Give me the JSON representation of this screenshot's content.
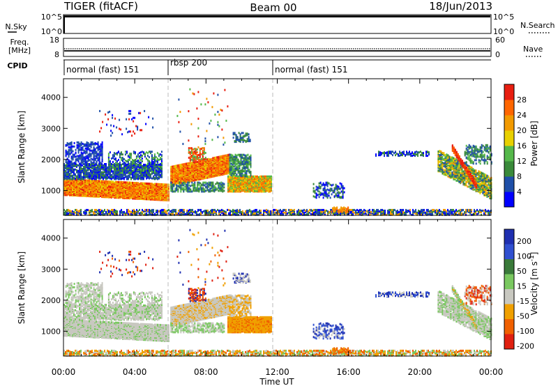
{
  "header": {
    "radar": "TIGER (fitACF)",
    "beam": "Beam 00",
    "date": "18/Jun/2013"
  },
  "nsky_panel": {
    "label": "N.Sky",
    "ticks_left": [
      "10^5",
      "10^0"
    ],
    "ticks_right": [
      "10^5",
      "10^0"
    ],
    "right_label": "N.Search"
  },
  "freq_panel": {
    "label_line1": "Freq.",
    "label_line2": "[MHz]",
    "ticks_left": [
      "18",
      "8"
    ],
    "ticks_right": [
      "60",
      "0"
    ],
    "right_label": "Nave"
  },
  "cpid": {
    "label": "CPID",
    "segments": [
      {
        "name": "normal (fast) 151",
        "start_hour": 0,
        "end_hour": 6
      },
      {
        "name": "rbsp 200",
        "start_hour": 6,
        "end_hour": 12
      },
      {
        "name": "normal (fast) 151",
        "start_hour": 12,
        "end_hour": 24
      }
    ]
  },
  "colors": {
    "power": [
      "#0000ff",
      "#1f4fa8",
      "#3a8a3a",
      "#55b84a",
      "#e8d000",
      "#f29a00",
      "#ff6600",
      "#e81e10"
    ],
    "velocity": [
      "#1f2fb0",
      "#3050d0",
      "#3a7a3a",
      "#7ac860",
      "#c8c8c0",
      "#f0a000",
      "#f06000",
      "#e02010"
    ],
    "velocity_clip": [
      "#e01010",
      "#e01010"
    ]
  },
  "chart_data": [
    {
      "type": "heatmap",
      "name": "power",
      "xlabel": "",
      "ylabel": "Slant Range [km]",
      "x_range_hours": [
        0,
        24
      ],
      "ylim": [
        200,
        4600
      ],
      "y_ticks": [
        1000,
        2000,
        3000,
        4000
      ],
      "colorbar": {
        "label": "Power [dB]",
        "ticks": [
          "4",
          "8",
          "12",
          "16",
          "20",
          "24",
          "28"
        ],
        "range": [
          0,
          32
        ]
      }
    },
    {
      "type": "heatmap",
      "name": "velocity",
      "xlabel": "Time UT",
      "ylabel": "Slant Range [km]",
      "x_range_hours": [
        0,
        24
      ],
      "x_tick_labels": [
        "00:00",
        "04:00",
        "08:00",
        "12:00",
        "16:00",
        "20:00",
        "00:00"
      ],
      "ylim": [
        200,
        4600
      ],
      "y_ticks": [
        1000,
        2000,
        3000,
        4000
      ],
      "colorbar": {
        "label_main": "Velocity [m s",
        "label_sup": "-1",
        "label_end": "]",
        "ticks": [
          "200",
          "100",
          "50",
          "15",
          "-15",
          "-50",
          "-100",
          "-200"
        ]
      }
    }
  ]
}
